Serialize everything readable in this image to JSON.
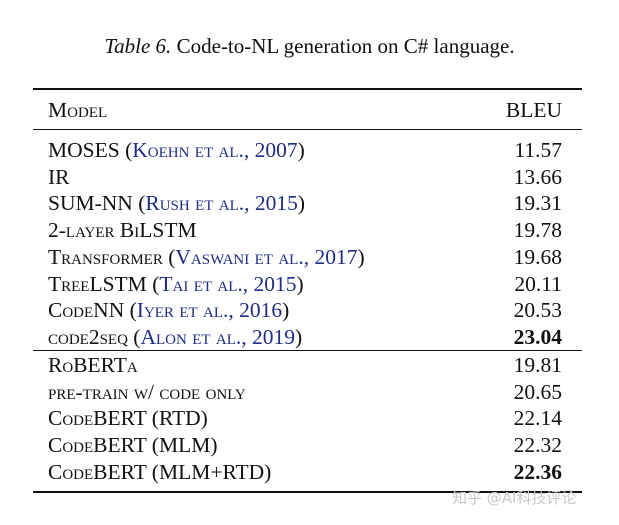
{
  "caption": {
    "label": "Table 6.",
    "text": "Code-to-NL generation on C# language."
  },
  "header": {
    "model": "Model",
    "score": "BLEU"
  },
  "rows": [
    {
      "model": "MOSES",
      "cite": "Koehn et al., 2007",
      "score": "11.57",
      "bold": false
    },
    {
      "model": "IR",
      "cite": "",
      "score": "13.66",
      "bold": false
    },
    {
      "model": "SUM-NN",
      "cite": "Rush et al., 2015",
      "score": "19.31",
      "bold": false
    },
    {
      "model": "2-layer BiLSTM",
      "cite": "",
      "score": "19.78",
      "bold": false
    },
    {
      "model": "Transformer",
      "cite": "Vaswani et al., 2017",
      "score": "19.68",
      "bold": false
    },
    {
      "model": "TreeLSTM",
      "cite": "Tai et al., 2015",
      "score": "20.11",
      "bold": false
    },
    {
      "model": "CodeNN",
      "cite": "Iyer et al., 2016",
      "score": "20.53",
      "bold": false
    },
    {
      "model": "code2seq",
      "cite": "Alon et al., 2019",
      "score": "23.04",
      "bold": true
    },
    {
      "model": "RoBERTa",
      "cite": "",
      "score": "19.81",
      "bold": false
    },
    {
      "model": "pre-train w/ code only",
      "cite": "",
      "score": "20.65",
      "bold": false
    },
    {
      "model": "CodeBERT (RTD)",
      "cite": "",
      "score": "22.14",
      "bold": false
    },
    {
      "model": "CodeBERT (MLM)",
      "cite": "",
      "score": "22.32",
      "bold": false
    },
    {
      "model": "CodeBERT (MLM+RTD)",
      "cite": "",
      "score": "22.36",
      "bold": true
    }
  ],
  "watermark": "知乎 @AI科技评论"
}
